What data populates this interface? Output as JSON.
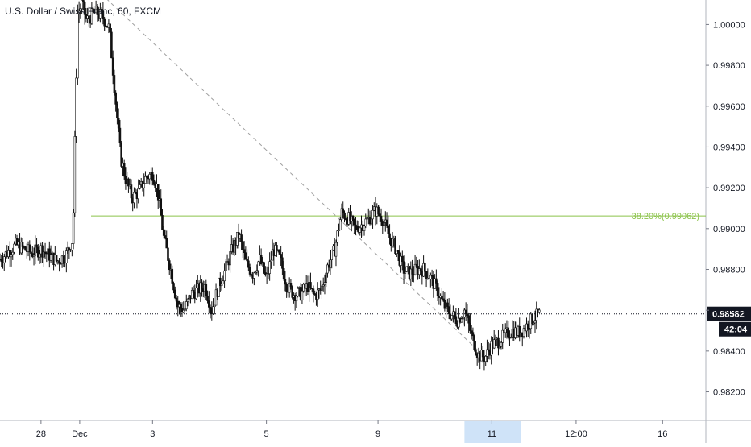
{
  "title": "U.S. Dollar / Swiss Franc, 60, FXCM",
  "colors": {
    "candle": "#111111",
    "fib": "#8bc34a",
    "trendline": "#9e9e9e",
    "price_label_bg": "#131722",
    "axis_text": "#131722",
    "highlight": "#cfe3f8"
  },
  "chart_data": {
    "type": "line",
    "title": "U.S. Dollar / Swiss Franc, 60, FXCM",
    "xlabel": "",
    "ylabel": "",
    "ylim": [
      0.9806,
      1.0012
    ],
    "x_ticks": [
      {
        "label": "28",
        "t": -17
      },
      {
        "label": "Dec",
        "t": 0
      },
      {
        "label": "3",
        "t": 32
      },
      {
        "label": "5",
        "t": 82
      },
      {
        "label": "9",
        "t": 131
      },
      {
        "label": "11",
        "t": 181
      },
      {
        "label": "12:00",
        "t": 218
      },
      {
        "label": "16",
        "t": 256
      }
    ],
    "x_range": [
      -35,
      275
    ],
    "y_ticks": [
      {
        "label": "1.00000",
        "v": 1.0
      },
      {
        "label": "0.99800",
        "v": 0.998
      },
      {
        "label": "0.99600",
        "v": 0.996
      },
      {
        "label": "0.99400",
        "v": 0.994
      },
      {
        "label": "0.99200",
        "v": 0.992
      },
      {
        "label": "0.99000",
        "v": 0.99
      },
      {
        "label": "0.98800",
        "v": 0.988
      },
      {
        "label": "0.98600",
        "v": 0.986
      },
      {
        "label": "0.98400",
        "v": 0.984
      },
      {
        "label": "0.98200",
        "v": 0.982
      }
    ],
    "fib_level": {
      "label": "38.20%(0.99062)",
      "value": 0.99062
    },
    "trend_line": {
      "from": {
        "t": 0,
        "v": 1.0025
      },
      "to": {
        "t": 179,
        "v": 0.9836
      }
    },
    "current_price": {
      "label": "0.98582",
      "value": 0.98582
    },
    "countdown": "42:04",
    "highlighted_x_label": "11",
    "series": [
      {
        "values": [
          [
            -35,
            0.9885
          ],
          [
            -28,
            0.9892
          ],
          [
            -21,
            0.9888
          ],
          [
            -17,
            0.989
          ],
          [
            -10,
            0.9884
          ],
          [
            -6,
            0.9887
          ],
          [
            -3,
            0.9895
          ],
          [
            -1,
            1.0005
          ],
          [
            1,
            1.001
          ],
          [
            3,
            1.0002
          ],
          [
            7,
            1.0006
          ],
          [
            10,
            1.0004
          ],
          [
            13,
            0.9998
          ],
          [
            16,
            0.996
          ],
          [
            18,
            0.9935
          ],
          [
            20,
            0.9925
          ],
          [
            23,
            0.9915
          ],
          [
            26,
            0.9918
          ],
          [
            29,
            0.9925
          ],
          [
            32,
            0.9927
          ],
          [
            34,
            0.992
          ],
          [
            37,
            0.9895
          ],
          [
            40,
            0.988
          ],
          [
            43,
            0.9862
          ],
          [
            46,
            0.986
          ],
          [
            49,
            0.9868
          ],
          [
            52,
            0.987
          ],
          [
            55,
            0.9872
          ],
          [
            58,
            0.986
          ],
          [
            61,
            0.9872
          ],
          [
            64,
            0.988
          ],
          [
            67,
            0.989
          ],
          [
            70,
            0.9897
          ],
          [
            73,
            0.9883
          ],
          [
            76,
            0.9878
          ],
          [
            79,
            0.9885
          ],
          [
            82,
            0.9875
          ],
          [
            85,
            0.989
          ],
          [
            88,
            0.9885
          ],
          [
            91,
            0.9872
          ],
          [
            94,
            0.9868
          ],
          [
            97,
            0.9868
          ],
          [
            100,
            0.9872
          ],
          [
            103,
            0.9867
          ],
          [
            106,
            0.987
          ],
          [
            109,
            0.9882
          ],
          [
            112,
            0.989
          ],
          [
            115,
            0.9908
          ],
          [
            118,
            0.9905
          ],
          [
            121,
            0.99
          ],
          [
            124,
            0.9902
          ],
          [
            127,
            0.9905
          ],
          [
            130,
            0.9909
          ],
          [
            133,
            0.9905
          ],
          [
            136,
            0.9896
          ],
          [
            139,
            0.989
          ],
          [
            142,
            0.988
          ],
          [
            145,
            0.9878
          ],
          [
            148,
            0.988
          ],
          [
            151,
            0.988
          ],
          [
            154,
            0.9876
          ],
          [
            157,
            0.987
          ],
          [
            160,
            0.9862
          ],
          [
            163,
            0.9858
          ],
          [
            166,
            0.9855
          ],
          [
            169,
            0.986
          ],
          [
            172,
            0.9848
          ],
          [
            175,
            0.9838
          ],
          [
            178,
            0.9837
          ],
          [
            181,
            0.9843
          ],
          [
            184,
            0.9845
          ],
          [
            187,
            0.9848
          ],
          [
            190,
            0.985
          ],
          [
            193,
            0.9849
          ],
          [
            196,
            0.9852
          ],
          [
            199,
            0.9856
          ],
          [
            202,
            0.9858
          ]
        ]
      }
    ]
  }
}
